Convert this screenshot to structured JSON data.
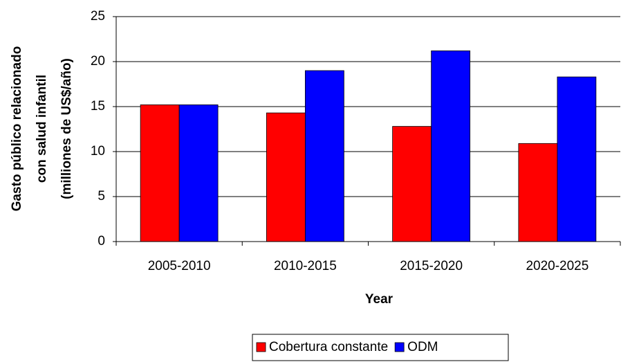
{
  "chart_data": {
    "type": "bar",
    "y_label": [
      "Gasto público relacionado",
      "con salud infantil",
      "(milliones de US$/año)"
    ],
    "x_label": "Year",
    "categories": [
      "2005-2010",
      "2010-2015",
      "2015-2020",
      "2020-2025"
    ],
    "series": [
      {
        "name": "Cobertura constante",
        "color": "#ff0000",
        "values": [
          15.2,
          14.3,
          12.8,
          10.9
        ]
      },
      {
        "name": "ODM",
        "color": "#0000ff",
        "values": [
          15.2,
          19.0,
          21.2,
          18.3
        ]
      }
    ],
    "ylim": [
      0,
      25
    ],
    "yticks": [
      0,
      5,
      10,
      15,
      20,
      25
    ],
    "grid": true,
    "legend": "bottom"
  }
}
